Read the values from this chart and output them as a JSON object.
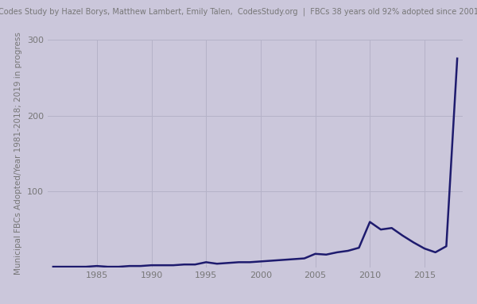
{
  "title": "Codes Study by Hazel Borys, Matthew Lambert, Emily Talen,  CodesStudy.org  |  FBCs 38 years old 92% adopted since 2001",
  "ylabel": "Municipal FBCs Adopted/Year 1981-2018; 2019 in progress",
  "background_color": "#cbc7db",
  "line_color": "#1e1b6e",
  "line_width": 1.8,
  "title_fontsize": 7.0,
  "ylabel_fontsize": 7.5,
  "tick_fontsize": 8,
  "years": [
    1981,
    1982,
    1983,
    1984,
    1985,
    1986,
    1987,
    1988,
    1989,
    1990,
    1991,
    1992,
    1993,
    1994,
    1995,
    1996,
    1997,
    1998,
    1999,
    2000,
    2001,
    2002,
    2003,
    2004,
    2005,
    2006,
    2007,
    2008,
    2009,
    2010,
    2011,
    2012,
    2013,
    2014,
    2015,
    2016,
    2017,
    2018
  ],
  "values": [
    1,
    1,
    1,
    1,
    2,
    1,
    1,
    2,
    2,
    3,
    3,
    3,
    4,
    4,
    7,
    5,
    6,
    7,
    7,
    8,
    9,
    10,
    11,
    12,
    18,
    17,
    20,
    22,
    26,
    60,
    50,
    52,
    42,
    33,
    25,
    20,
    28,
    275
  ],
  "ylim": [
    0,
    300
  ],
  "yticks": [
    100,
    200,
    300
  ],
  "xticks": [
    1985,
    1990,
    1995,
    2000,
    2005,
    2010,
    2015
  ],
  "grid_color": "#b5b2c8",
  "tick_color": "#777777"
}
